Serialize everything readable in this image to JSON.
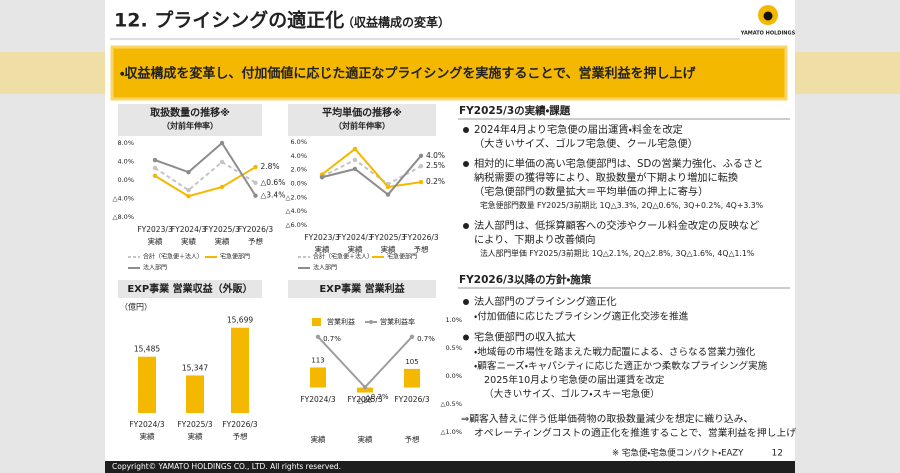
{
  "header": {
    "title": "12. プライシングの適正化",
    "subtitle": "（収益構成の変革）",
    "logo": "YAMATO HOLDINGS"
  },
  "banner": "・収益構成を変革し、付加価値に応じた適正なプライシングを実施することで、営業利益を押し上げ",
  "chart_data": [
    {
      "type": "line",
      "title": "取扱数量の推移※",
      "subtitle": "（対前年伸率）",
      "categories": [
        "FY2023/3",
        "FY2024/3",
        "FY2025/3",
        "FY2026/3"
      ],
      "category_notes": [
        "実績",
        "実績",
        "実績",
        "予想"
      ],
      "ylim": [
        -8,
        8
      ],
      "yticks": [
        {
          "value": 8,
          "label": "8.0%"
        },
        {
          "value": 4,
          "label": "4.0%"
        },
        {
          "value": 0,
          "label": "0.0%"
        },
        {
          "value": -4,
          "label": "△4.0%"
        },
        {
          "value": -8,
          "label": "△8.0%"
        }
      ],
      "series": [
        {
          "name": "合計（宅急便＋法人）",
          "color": "#c4c4c4",
          "dashed": true,
          "values": [
            2.6,
            -2.2,
            3.9,
            -0.6
          ],
          "end_label": "△0.6%"
        },
        {
          "name": "宅急便部門",
          "color": "#f5b800",
          "dashed": false,
          "values": [
            0.9,
            -3.5,
            -1.5,
            2.8
          ],
          "end_label": "2.8%"
        },
        {
          "name": "法人部門",
          "color": "#8c8c8c",
          "dashed": false,
          "values": [
            4.3,
            1.7,
            8.0,
            -3.4
          ],
          "end_label": "△3.4%"
        }
      ]
    },
    {
      "type": "line",
      "title": "平均単価の推移※",
      "subtitle": "（対前年伸率）",
      "categories": [
        "FY2023/3",
        "FY2024/3",
        "FY2025/3",
        "FY2026/3"
      ],
      "category_notes": [
        "実績",
        "実績",
        "実績",
        "予想"
      ],
      "ylim": [
        -6,
        6
      ],
      "yticks": [
        {
          "value": 6,
          "label": "6.0%"
        },
        {
          "value": 4,
          "label": "4.0%"
        },
        {
          "value": 2,
          "label": "2.0%"
        },
        {
          "value": 0,
          "label": "0.0%"
        },
        {
          "value": -2,
          "label": "△2.0%"
        },
        {
          "value": -4,
          "label": "△4.0%"
        },
        {
          "value": -6,
          "label": "△6.0%"
        }
      ],
      "series": [
        {
          "name": "合計（宅急便＋法人）",
          "color": "#c4c4c4",
          "dashed": true,
          "values": [
            1.0,
            3.4,
            -0.1,
            2.5
          ],
          "end_label": "2.5%"
        },
        {
          "name": "宅急便部門",
          "color": "#f5b800",
          "dashed": false,
          "values": [
            1.3,
            5.0,
            -0.5,
            0.2
          ],
          "end_label": "0.2%"
        },
        {
          "name": "法人部門",
          "color": "#8c8c8c",
          "dashed": false,
          "values": [
            0.9,
            2.1,
            -1.6,
            4.0
          ],
          "end_label": "4.0%"
        }
      ]
    },
    {
      "type": "bar",
      "title": "EXP事業 営業収益（外販）",
      "unit": "（億円）",
      "categories": [
        "FY2024/3",
        "FY2025/3",
        "FY2026/3"
      ],
      "category_notes": [
        "実績",
        "実績",
        "予想"
      ],
      "values": [
        15485,
        15347,
        15699
      ],
      "value_labels": [
        "15,485",
        "15,347",
        "15,699"
      ],
      "color": "#f5b800",
      "ylim": [
        15070,
        15800
      ]
    },
    {
      "type": "combo",
      "title": "EXP事業 営業利益",
      "categories": [
        "FY2024/3",
        "FY2025/3",
        "FY2026/3"
      ],
      "category_notes": [
        "実績",
        "実績",
        "予想"
      ],
      "ylim": [
        -250,
        380
      ],
      "y2lim": [
        -1,
        1
      ],
      "y2ticks": [
        {
          "value": 1,
          "label": "1.0%"
        },
        {
          "value": 0.5,
          "label": "0.5%"
        },
        {
          "value": 0,
          "label": "0.0%"
        },
        {
          "value": -0.5,
          "label": "△0.5%"
        },
        {
          "value": -1,
          "label": "△1.0%"
        }
      ],
      "series": [
        {
          "name": "営業利益",
          "color": "#f5b800",
          "values": [
            113,
            -28,
            105
          ],
          "value_labels": [
            "113",
            "△28",
            "105"
          ]
        },
        {
          "name": "営業利益率",
          "color": "#9e9e9e",
          "axis": "y2",
          "values": [
            0.7,
            -0.2,
            0.7
          ],
          "value_labels": [
            "0.7%",
            "△0.2%",
            "0.7%"
          ]
        }
      ]
    }
  ],
  "results": {
    "heading": "FY2025/3の実績・課題",
    "items": [
      {
        "lines": [
          "2024年4月より宅急便の届出運賃・料金を改定",
          "（大きいサイズ、ゴルフ宅急便、クール宅急便）"
        ]
      },
      {
        "lines": [
          "相対的に単価の高い宅急便部門は、SDの営業力強化、ふるさと",
          "納税需要の獲得等により、取扱数量が下期より増加に転換",
          "（宅急便部門の数量拡大＝平均単価の押上に寄与）"
        ],
        "note": "宅急便部門数量 FY2025/3前期比 1Q△3.3%, 2Q△0.6%, 3Q+0.2%, 4Q+3.3%"
      },
      {
        "lines": [
          "法人部門は、低採算顧客への交渉やクール料金改定の反映など",
          "により、下期より改善傾向"
        ],
        "note": "法人部門単価 FY2025/3前期比 1Q△2.1%, 2Q△2.8%, 3Q△1.6%, 4Q△1.1%"
      }
    ]
  },
  "policy": {
    "heading": "FY2026/3以降の方針・施策",
    "items": [
      {
        "lines": [
          "法人部門のプライシング適正化"
        ],
        "subs": [
          "・付加価値に応じたプライシング適正化交渉を推進"
        ]
      },
      {
        "lines": [
          "宅急便部門の収入拡大"
        ],
        "subs": [
          "・地域毎の市場性を踏まえた戦力配置による、さらなる営業力強化",
          "・顧客ニーズ・キャパシティに応じた適正かつ柔軟なプライシング実施",
          "2025年10月より宅急便の届出運賃を改定",
          "（大きいサイズ、ゴルフ・スキー宅急便）"
        ]
      }
    ],
    "conclusion": [
      "⇒顧客入替えに伴う低単価荷物の取扱数量減少を想定に織り込み、",
      "オペレーティングコストの適正化を推進することで、営業利益を押し上げ"
    ]
  },
  "footnote": "※ 宅急便・宅急便コンパクト・EAZY",
  "page": "12",
  "copyright": "Copyright© YAMATO HOLDINGS CO., LTD. All rights reserved."
}
